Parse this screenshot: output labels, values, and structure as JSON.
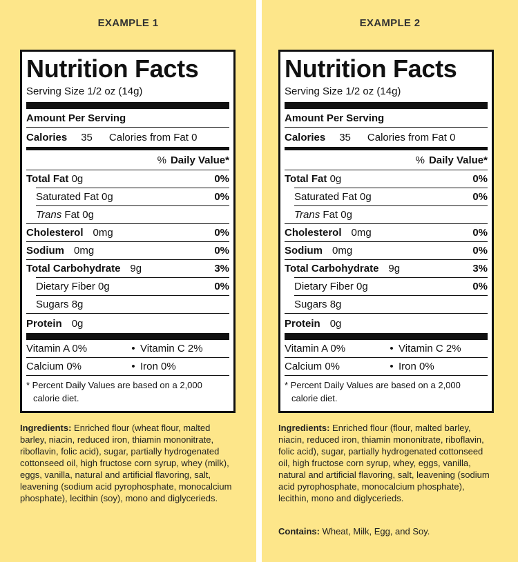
{
  "examples": [
    {
      "heading": "EXAMPLE 1",
      "label": {
        "title": "Nutrition Facts",
        "serving_size": "Serving Size  1/2 oz  (14g)",
        "amount_per_serving": "Amount Per Serving",
        "calories_label": "Calories",
        "calories_value": "35",
        "calories_from_fat": "Calories from Fat  0",
        "dv_percent": "%",
        "dv_header": "Daily Value*",
        "total_fat_label": "Total Fat",
        "total_fat_amount": "0g",
        "total_fat_dv": "0%",
        "sat_fat": "Saturated Fat 0g",
        "sat_fat_dv": "0%",
        "trans_label": "Trans",
        "trans_rest": "Fat 0g",
        "cholesterol_label": "Cholesterol",
        "cholesterol_amount": "0mg",
        "cholesterol_dv": "0%",
        "sodium_label": "Sodium",
        "sodium_amount": "0mg",
        "sodium_dv": "0%",
        "carb_label": "Total Carbohydrate",
        "carb_amount": "9g",
        "carb_dv": "3%",
        "fiber": "Dietary Fiber 0g",
        "fiber_dv": "0%",
        "sugars": "Sugars 8g",
        "protein_label": "Protein",
        "protein_amount": "0g",
        "vitamin_a": "Vitamin A  0%",
        "vitamin_c": "Vitamin C 2%",
        "calcium": "Calcium 0%",
        "iron": "Iron  0%",
        "bullet": "•",
        "footnote_line1": "* Percent Daily Values are based on a 2,000",
        "footnote_line2": "calorie diet."
      },
      "ingredients_label": "Ingredients:",
      "ingredients_text": "Enriched flour (wheat flour, malted barley, niacin, reduced iron, thiamin mononitrate, riboflavin, folic acid), sugar, partially hydrogenated cottonseed oil, high fructose corn syrup, whey (milk), eggs, vanilla, natural and artificial flavoring, salt, leavening (sodium acid pyrophosphate, monocalcium phosphate), lecithin (soy), mono and diglycerieds."
    },
    {
      "heading": "EXAMPLE 2",
      "label": {
        "title": "Nutrition Facts",
        "serving_size": "Serving Size  1/2 oz  (14g)",
        "amount_per_serving": "Amount Per Serving",
        "calories_label": "Calories",
        "calories_value": "35",
        "calories_from_fat": "Calories from Fat  0",
        "dv_percent": "%",
        "dv_header": "Daily Value*",
        "total_fat_label": "Total Fat",
        "total_fat_amount": "0g",
        "total_fat_dv": "0%",
        "sat_fat": "Saturated Fat 0g",
        "sat_fat_dv": "0%",
        "trans_label": "Trans",
        "trans_rest": "Fat 0g",
        "cholesterol_label": "Cholesterol",
        "cholesterol_amount": "0mg",
        "cholesterol_dv": "0%",
        "sodium_label": "Sodium",
        "sodium_amount": "0mg",
        "sodium_dv": "0%",
        "carb_label": "Total Carbohydrate",
        "carb_amount": "9g",
        "carb_dv": "3%",
        "fiber": "Dietary Fiber 0g",
        "fiber_dv": "0%",
        "sugars": "Sugars 8g",
        "protein_label": "Protein",
        "protein_amount": "0g",
        "vitamin_a": "Vitamin A  0%",
        "vitamin_c": "Vitamin C 2%",
        "calcium": "Calcium 0%",
        "iron": "Iron  0%",
        "bullet": "•",
        "footnote_line1": "* Percent Daily Values are based on a 2,000",
        "footnote_line2": "calorie diet."
      },
      "ingredients_label": "Ingredients:",
      "ingredients_text": "Enriched flour (flour, malted barley, niacin, reduced iron, thiamin mononitrate, riboflavin, folic acid), sugar, partially hydrogenated cottonseed oil, high fructose corn syrup, whey, eggs, vanilla, natural and artificial flavoring, salt, leavening (sodium acid pyrophosphate, monocalcium phosphate), lecithin, mono and diglycerieds.",
      "contains_label": "Contains:",
      "contains_text": "Wheat, Milk, Egg, and Soy."
    }
  ],
  "colors": {
    "panel_bg": "#fde68a",
    "divider": "#ffffff",
    "ink": "#111111"
  }
}
